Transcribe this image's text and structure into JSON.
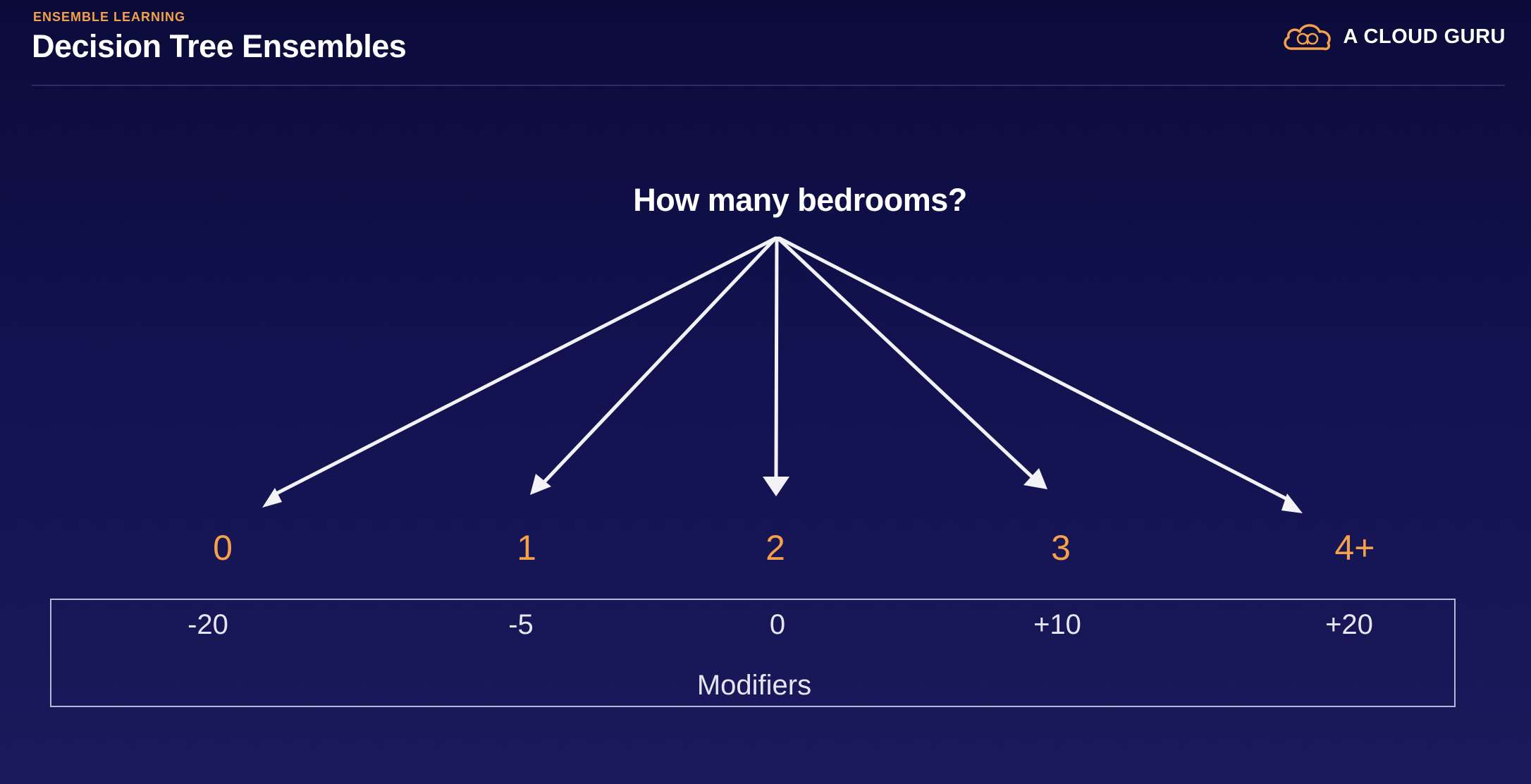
{
  "header": {
    "section": "ENSEMBLE LEARNING",
    "title": "Decision Tree Ensembles",
    "brand": "A CLOUD GURU",
    "brand_icon": "cloud-icon"
  },
  "diagram": {
    "question": "How many bedrooms?",
    "options": [
      "0",
      "1",
      "2",
      "3",
      "4+"
    ],
    "modifiers": [
      "-20",
      "-5",
      "0",
      "+10",
      "+20"
    ],
    "modifiers_label": "Modifiers"
  },
  "colors": {
    "accent": "#f5a04a",
    "background": "#121250",
    "text": "#ffffff"
  }
}
